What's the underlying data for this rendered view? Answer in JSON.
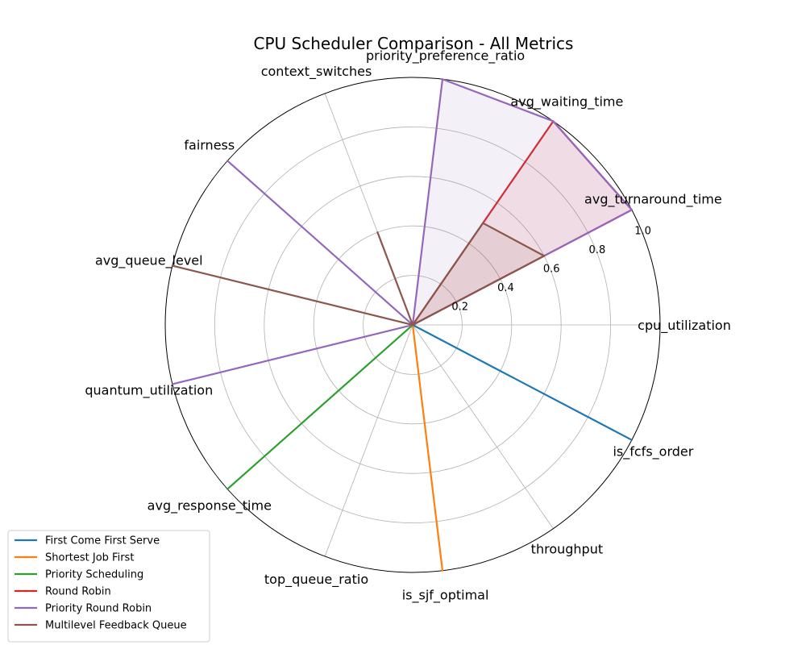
{
  "chart_data": {
    "type": "radar",
    "title": "CPU Scheduler Comparison - All Metrics",
    "axes": [
      "cpu_utilization",
      "avg_turnaround_time",
      "avg_waiting_time",
      "priority_preference_ratio",
      "context_switches",
      "fairness",
      "avg_queue_level",
      "quantum_utilization",
      "avg_response_time",
      "top_queue_ratio",
      "is_sjf_optimal",
      "throughput",
      "is_fcfs_order"
    ],
    "rlim": [
      0,
      1.0
    ],
    "rticks": [
      0.2,
      0.4,
      0.6,
      0.8,
      1.0
    ],
    "rtick_labels": [
      "0.2",
      "0.4",
      "0.6",
      "0.8",
      "1.0"
    ],
    "grid": true,
    "legend_position": "lower-left",
    "series": [
      {
        "name": "First Come First Serve",
        "color": "#1f77b4",
        "values": [
          0,
          0,
          0,
          0,
          0,
          0,
          0,
          0,
          0,
          0,
          0,
          0,
          1.0
        ]
      },
      {
        "name": "Shortest Job First",
        "color": "#ff7f0e",
        "values": [
          0,
          0,
          0,
          0,
          0,
          0,
          0,
          0,
          0,
          0,
          1.0,
          0,
          0
        ]
      },
      {
        "name": "Priority Scheduling",
        "color": "#2ca02c",
        "values": [
          0,
          0,
          0,
          0,
          0,
          0,
          0,
          0,
          1.0,
          0,
          0,
          0,
          0
        ]
      },
      {
        "name": "Round Robin",
        "color": "#d62728",
        "values": [
          0,
          1.0,
          1.0,
          0,
          0,
          0,
          0,
          0,
          0,
          0,
          0,
          0,
          0
        ]
      },
      {
        "name": "Priority Round Robin",
        "color": "#9467bd",
        "values": [
          0,
          1.0,
          1.0,
          1.0,
          0,
          1.0,
          0,
          1.0,
          0,
          0,
          0,
          0,
          0
        ]
      },
      {
        "name": "Multilevel Feedback Queue",
        "color": "#8c564b",
        "values": [
          0,
          0.6,
          0.5,
          0,
          0.4,
          0,
          1.0,
          0,
          0,
          0,
          0,
          0,
          0
        ]
      }
    ]
  }
}
